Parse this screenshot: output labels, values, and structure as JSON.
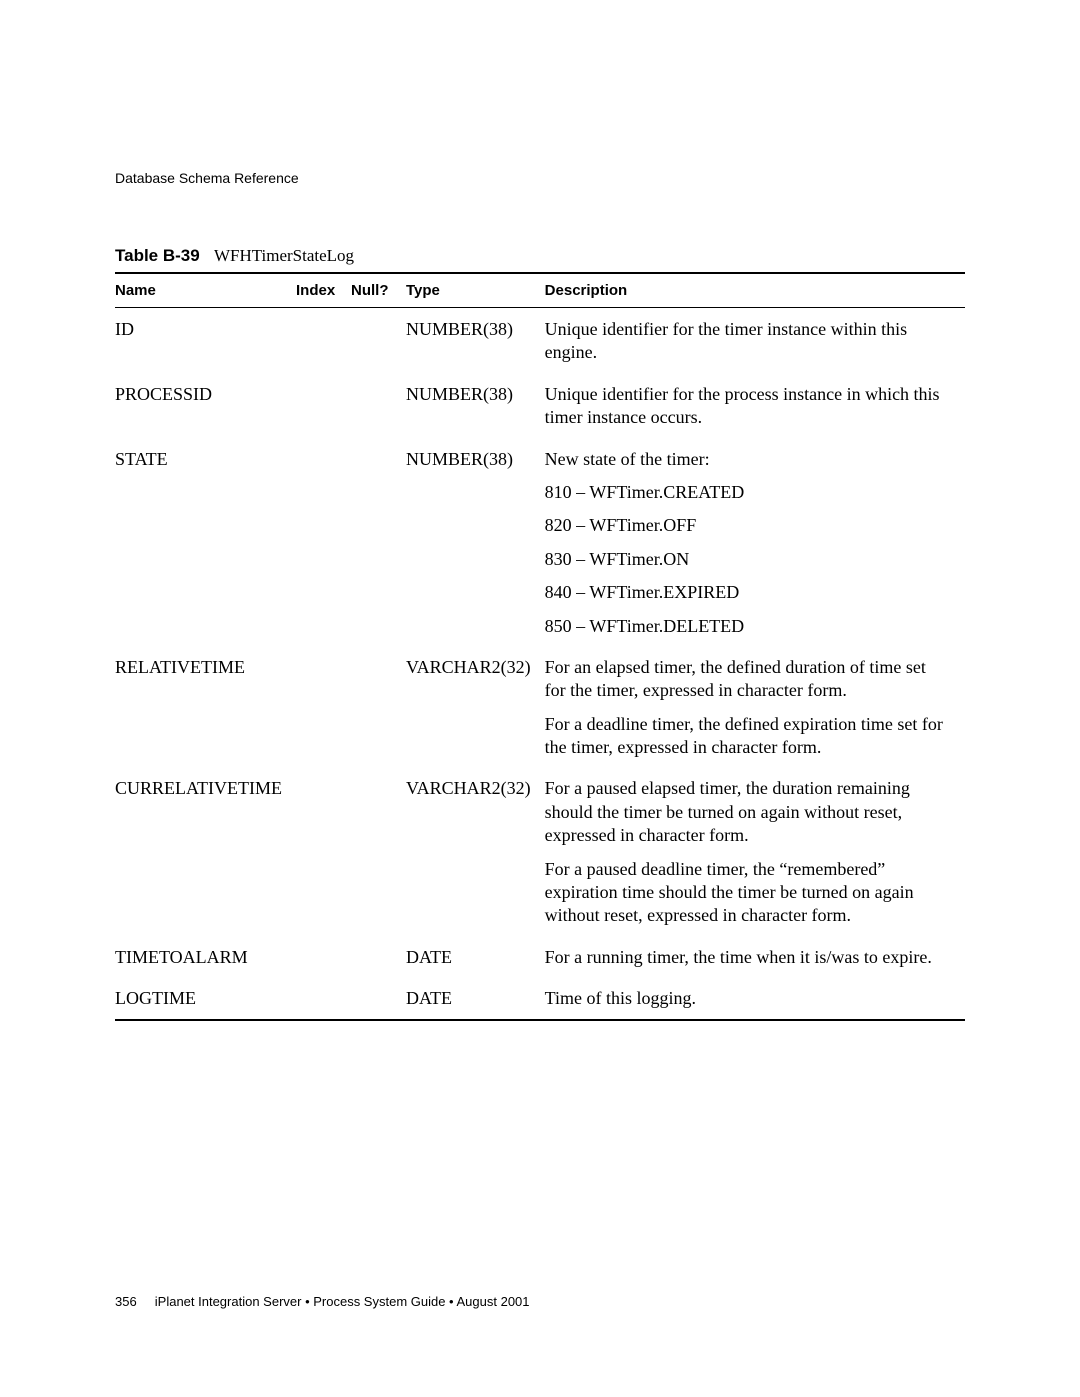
{
  "section_header": "Database Schema Reference",
  "table": {
    "caption_prefix": "Table B-39",
    "caption_title": "WFHTimerStateLog",
    "columns": [
      "Name",
      "Index",
      "Null?",
      "Type",
      "Description"
    ],
    "rows": [
      {
        "name": "ID",
        "index": "",
        "null": "",
        "type": "NUMBER(38)",
        "desc": [
          "Unique identifier for the timer instance within this engine."
        ]
      },
      {
        "name": "PROCESSID",
        "index": "",
        "null": "",
        "type": "NUMBER(38)",
        "desc": [
          "Unique identifier for the process instance in which this timer instance occurs."
        ]
      },
      {
        "name": "STATE",
        "index": "",
        "null": "",
        "type": "NUMBER(38)",
        "desc": [
          "New state of the timer:",
          "810 – WFTimer.CREATED",
          "820 – WFTimer.OFF",
          "830 – WFTimer.ON",
          "840 – WFTimer.EXPIRED",
          "850 – WFTimer.DELETED"
        ]
      },
      {
        "name": "RELATIVETIME",
        "index": "",
        "null": "",
        "type": "VARCHAR2(32)",
        "desc": [
          "For an elapsed timer, the defined duration of time set for the timer, expressed in character form.",
          "For a deadline timer, the defined expiration time set for the timer, expressed in character form."
        ]
      },
      {
        "name": "CURRELATIVETIME",
        "index": "",
        "null": "",
        "type": "VARCHAR2(32)",
        "desc": [
          "For a paused elapsed timer, the duration remaining should the timer be turned on again without reset, expressed in character form.",
          "For a paused deadline timer, the “remembered” expiration time should the timer be turned on again without reset, expressed in character form."
        ]
      },
      {
        "name": "TIMETOALARM",
        "index": "",
        "null": "",
        "type": "DATE",
        "desc": [
          "For a running timer, the time when it is/was to expire."
        ]
      },
      {
        "name": "LOGTIME",
        "index": "",
        "null": "",
        "type": "DATE",
        "desc": [
          "Time of this logging."
        ]
      }
    ]
  },
  "footer": {
    "page_number": "356",
    "text": "iPlanet Integration Server • Process System Guide • August 2001"
  }
}
